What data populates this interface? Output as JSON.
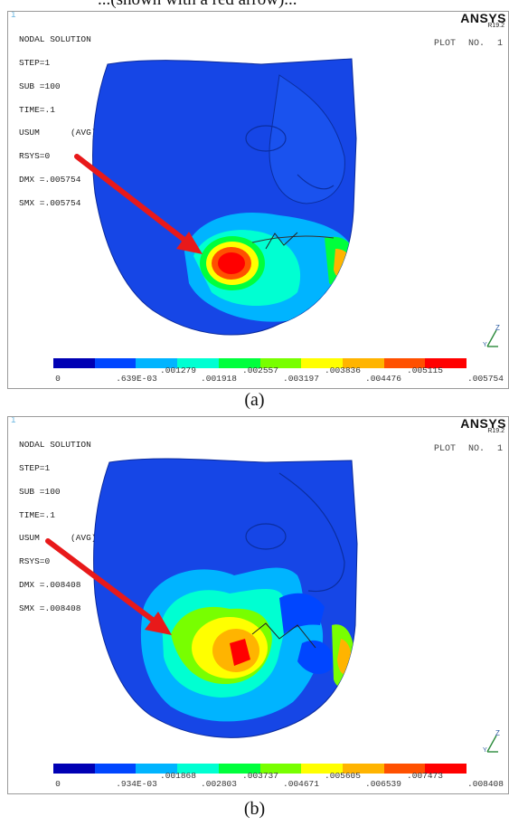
{
  "header_text": "...(shown with a red arrow)...",
  "panels": [
    {
      "caption": "(a)",
      "corner_id": "1",
      "info_lines": [
        "NODAL SOLUTION",
        "STEP=1",
        "SUB =100",
        "TIME=.1",
        "USUM      (AVG)",
        "RSYS=0",
        "DMX =.005754",
        "SMX =.005754"
      ],
      "brand": "ANSYS",
      "version": "R19.2",
      "plot_no_label": "PLOT NO.",
      "plot_no_value": "1",
      "legend_labels_low": [
        "0",
        ".639E-03",
        ".001918",
        ".003197",
        ".004476",
        ".005754"
      ],
      "legend_labels_high": [
        ".001279",
        ".002557",
        ".003836",
        ".005115"
      ]
    },
    {
      "caption": "(b)",
      "corner_id": "1",
      "info_lines": [
        "NODAL SOLUTION",
        "STEP=1",
        "SUB =100",
        "TIME=.1",
        "USUM      (AVG)",
        "RSYS=0",
        "DMX =.008408",
        "SMX =.008408"
      ],
      "brand": "ANSYS",
      "version": "R19.2",
      "plot_no_label": "PLOT NO.",
      "plot_no_value": "1",
      "legend_labels_low": [
        "0",
        ".934E-03",
        ".002803",
        ".004671",
        ".006539",
        ".008408"
      ],
      "legend_labels_high": [
        ".001868",
        ".003737",
        ".005605",
        ".007473"
      ]
    }
  ],
  "legend_colors": [
    "#0000b4",
    "#0046ff",
    "#00b4ff",
    "#00ffd2",
    "#00ff3c",
    "#78ff00",
    "#ffff00",
    "#ffb400",
    "#ff5000",
    "#ff0000"
  ],
  "arrow_color": "#e8191a",
  "face_color": "#1646e6"
}
